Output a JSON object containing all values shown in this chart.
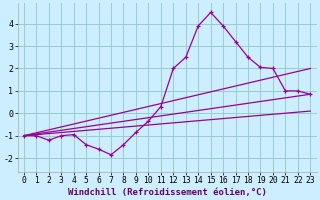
{
  "xlabel": "Windchill (Refroidissement éolien,°C)",
  "background_color": "#cceeff",
  "grid_color": "#99cccc",
  "line_color": "#990099",
  "xlim": [
    -0.5,
    23.5
  ],
  "ylim": [
    -2.6,
    4.9
  ],
  "xticks": [
    0,
    1,
    2,
    3,
    4,
    5,
    6,
    7,
    8,
    9,
    10,
    11,
    12,
    13,
    14,
    15,
    16,
    17,
    18,
    19,
    20,
    21,
    22,
    23
  ],
  "yticks": [
    -2,
    -1,
    0,
    1,
    2,
    3,
    4
  ],
  "series1_x": [
    0,
    1,
    2,
    3,
    4,
    5,
    6,
    7,
    8,
    9,
    10,
    11,
    12,
    13,
    14,
    15,
    16,
    17,
    18,
    19,
    20,
    21,
    22,
    23
  ],
  "series1_y": [
    -1.0,
    -1.0,
    -1.2,
    -1.0,
    -0.95,
    -1.4,
    -1.6,
    -1.85,
    -1.4,
    -0.85,
    -0.35,
    0.3,
    2.0,
    2.5,
    3.9,
    4.5,
    3.9,
    3.2,
    2.5,
    2.05,
    2.0,
    1.0,
    1.0,
    0.85
  ],
  "series2_x": [
    0,
    23
  ],
  "series2_y": [
    -1.0,
    2.0
  ],
  "series3_x": [
    0,
    23
  ],
  "series3_y": [
    -1.0,
    0.85
  ],
  "series4_x": [
    0,
    23
  ],
  "series4_y": [
    -1.0,
    0.1
  ],
  "xlabel_color": "#660066",
  "xlabel_fontsize": 6.5,
  "tick_fontsize": 5.8
}
